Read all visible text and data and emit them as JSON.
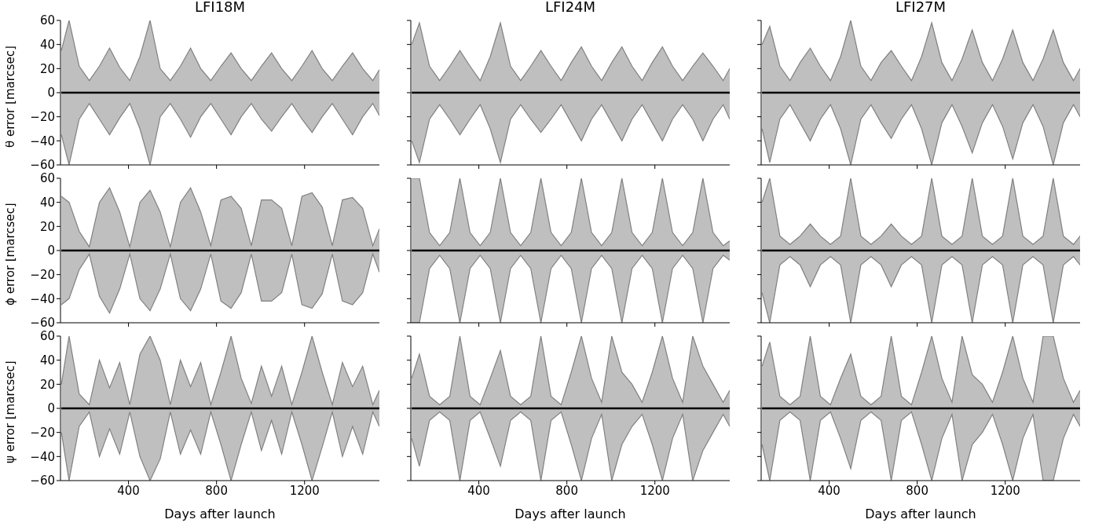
{
  "chart_data": [
    {
      "type": "line",
      "title": "LFI18M",
      "ylabel": "θ error [marcsec]",
      "tick_labels": "y",
      "xlim": [
        91,
        1540
      ],
      "xticks": [
        400,
        800,
        1200
      ],
      "ylim": [
        -60,
        60
      ],
      "yticks": [
        -60,
        -40,
        -20,
        0,
        20,
        40,
        60
      ],
      "x": [
        95,
        130,
        176,
        222,
        268,
        314,
        360,
        406,
        452,
        498,
        544,
        590,
        636,
        682,
        728,
        774,
        820,
        866,
        912,
        958,
        1004,
        1050,
        1096,
        1142,
        1188,
        1234,
        1280,
        1326,
        1372,
        1418,
        1464,
        1510,
        1540
      ],
      "series": [
        {
          "type": "area",
          "color": "#808080",
          "values": [
            35,
            60,
            22,
            10,
            22,
            37,
            21,
            10,
            30,
            60,
            20,
            10,
            22,
            37,
            20,
            10,
            22,
            33,
            20,
            10,
            22,
            33,
            20,
            10,
            22,
            35,
            20,
            10,
            22,
            33,
            20,
            10,
            19
          ]
        },
        {
          "type": "area",
          "color": "#808080",
          "values": [
            -35,
            -60,
            -22,
            -9,
            -22,
            -35,
            -21,
            -9,
            -30,
            -60,
            -20,
            -9,
            -22,
            -37,
            -20,
            -9,
            -22,
            -35,
            -20,
            -9,
            -22,
            -32,
            -20,
            -9,
            -22,
            -33,
            -20,
            -9,
            -22,
            -35,
            -20,
            -9,
            -19
          ]
        },
        {
          "color": "#000000",
          "values": [
            0,
            0,
            0,
            0,
            0,
            0,
            0,
            0,
            0,
            0,
            0,
            0,
            0,
            0,
            0,
            0,
            0,
            0,
            0,
            0,
            0,
            0,
            0,
            0,
            0,
            0,
            0,
            0,
            0,
            0,
            0,
            0,
            0
          ]
        }
      ]
    },
    {
      "type": "line",
      "title": "LFI24M",
      "tick_labels": false,
      "xlim": [
        91,
        1540
      ],
      "xticks": [
        400,
        800,
        1200
      ],
      "ylim": [
        -60,
        60
      ],
      "yticks": [
        -60,
        -40,
        -20,
        0,
        20,
        40,
        60
      ],
      "x": [
        95,
        130,
        176,
        222,
        268,
        314,
        360,
        406,
        452,
        498,
        544,
        590,
        636,
        682,
        728,
        774,
        820,
        866,
        912,
        958,
        1004,
        1050,
        1096,
        1142,
        1188,
        1234,
        1280,
        1326,
        1372,
        1418,
        1464,
        1510,
        1540
      ],
      "series": [
        {
          "type": "area",
          "color": "#808080",
          "values": [
            40,
            58,
            22,
            10,
            22,
            35,
            22,
            10,
            30,
            58,
            22,
            10,
            22,
            35,
            22,
            10,
            25,
            38,
            22,
            10,
            25,
            38,
            22,
            10,
            25,
            38,
            22,
            10,
            22,
            33,
            22,
            10,
            20
          ]
        },
        {
          "type": "area",
          "color": "#808080",
          "values": [
            -40,
            -58,
            -22,
            -10,
            -22,
            -35,
            -22,
            -10,
            -30,
            -58,
            -22,
            -10,
            -22,
            -33,
            -22,
            -10,
            -25,
            -40,
            -22,
            -10,
            -25,
            -40,
            -22,
            -10,
            -25,
            -40,
            -22,
            -10,
            -22,
            -40,
            -22,
            -10,
            -22
          ]
        },
        {
          "color": "#000000",
          "values": [
            0,
            0,
            0,
            0,
            0,
            0,
            0,
            0,
            0,
            0,
            0,
            0,
            0,
            0,
            0,
            0,
            0,
            0,
            0,
            0,
            0,
            0,
            0,
            0,
            0,
            0,
            0,
            0,
            0,
            0,
            0,
            0,
            0
          ]
        }
      ]
    },
    {
      "type": "line",
      "title": "LFI27M",
      "tick_labels": false,
      "xlim": [
        91,
        1540
      ],
      "xticks": [
        400,
        800,
        1200
      ],
      "ylim": [
        -60,
        60
      ],
      "yticks": [
        -60,
        -40,
        -20,
        0,
        20,
        40,
        60
      ],
      "x": [
        95,
        130,
        176,
        222,
        268,
        314,
        360,
        406,
        452,
        498,
        544,
        590,
        636,
        682,
        728,
        774,
        820,
        866,
        912,
        958,
        1004,
        1050,
        1096,
        1142,
        1188,
        1234,
        1280,
        1326,
        1372,
        1418,
        1464,
        1510,
        1540
      ],
      "series": [
        {
          "type": "area",
          "color": "#808080",
          "values": [
            40,
            55,
            22,
            10,
            25,
            37,
            22,
            10,
            30,
            60,
            22,
            10,
            25,
            35,
            22,
            10,
            30,
            58,
            25,
            10,
            28,
            52,
            25,
            10,
            28,
            52,
            25,
            10,
            28,
            52,
            25,
            10,
            20
          ]
        },
        {
          "type": "area",
          "color": "#808080",
          "values": [
            -30,
            -58,
            -22,
            -10,
            -25,
            -40,
            -22,
            -10,
            -30,
            -60,
            -22,
            -10,
            -25,
            -38,
            -22,
            -10,
            -30,
            -60,
            -25,
            -10,
            -28,
            -50,
            -25,
            -10,
            -28,
            -55,
            -25,
            -10,
            -28,
            -60,
            -25,
            -10,
            -20
          ]
        },
        {
          "color": "#000000",
          "values": [
            0,
            0,
            0,
            0,
            0,
            0,
            0,
            0,
            0,
            0,
            0,
            0,
            0,
            0,
            0,
            0,
            0,
            0,
            0,
            0,
            0,
            0,
            0,
            0,
            0,
            0,
            0,
            0,
            0,
            0,
            0,
            0,
            0
          ]
        }
      ]
    },
    {
      "type": "line",
      "ylabel": "ϕ error [marcsec]",
      "tick_labels": "y",
      "xlim": [
        91,
        1540
      ],
      "xticks": [
        400,
        800,
        1200
      ],
      "ylim": [
        -60,
        60
      ],
      "yticks": [
        -60,
        -40,
        -20,
        0,
        20,
        40,
        60
      ],
      "x": [
        95,
        130,
        176,
        222,
        268,
        314,
        360,
        406,
        452,
        498,
        544,
        590,
        636,
        682,
        728,
        774,
        820,
        866,
        912,
        958,
        1004,
        1050,
        1096,
        1142,
        1188,
        1234,
        1280,
        1326,
        1372,
        1418,
        1464,
        1510,
        1540
      ],
      "series": [
        {
          "type": "area",
          "color": "#808080",
          "values": [
            45,
            40,
            16,
            3,
            40,
            52,
            32,
            3,
            40,
            50,
            32,
            3,
            40,
            52,
            32,
            4,
            42,
            45,
            35,
            4,
            42,
            42,
            35,
            4,
            45,
            48,
            36,
            4,
            42,
            44,
            35,
            4,
            18
          ]
        },
        {
          "type": "area",
          "color": "#808080",
          "values": [
            -45,
            -40,
            -16,
            -3,
            -38,
            -52,
            -32,
            -3,
            -40,
            -50,
            -32,
            -3,
            -40,
            -50,
            -32,
            -3,
            -42,
            -48,
            -35,
            -3,
            -42,
            -42,
            -35,
            -3,
            -45,
            -48,
            -36,
            -3,
            -42,
            -45,
            -35,
            -3,
            -18
          ]
        },
        {
          "color": "#000000",
          "values": [
            0,
            0,
            0,
            0,
            0,
            0,
            0,
            0,
            0,
            0,
            0,
            0,
            0,
            0,
            0,
            0,
            0,
            0,
            0,
            0,
            0,
            0,
            0,
            0,
            0,
            0,
            0,
            0,
            0,
            0,
            0,
            0,
            0
          ]
        }
      ]
    },
    {
      "type": "line",
      "tick_labels": false,
      "xlim": [
        91,
        1540
      ],
      "xticks": [
        400,
        800,
        1200
      ],
      "ylim": [
        -60,
        60
      ],
      "yticks": [
        -60,
        -40,
        -20,
        0,
        20,
        40,
        60
      ],
      "x": [
        95,
        130,
        176,
        222,
        268,
        314,
        360,
        406,
        452,
        498,
        544,
        590,
        636,
        682,
        728,
        774,
        820,
        866,
        912,
        958,
        1004,
        1050,
        1096,
        1142,
        1188,
        1234,
        1280,
        1326,
        1372,
        1418,
        1464,
        1510,
        1540
      ],
      "series": [
        {
          "type": "area",
          "color": "#808080",
          "values": [
            60,
            60,
            15,
            4,
            15,
            60,
            15,
            4,
            15,
            60,
            15,
            4,
            15,
            60,
            15,
            4,
            15,
            60,
            15,
            4,
            15,
            60,
            15,
            4,
            15,
            60,
            15,
            4,
            15,
            60,
            15,
            4,
            8
          ]
        },
        {
          "type": "area",
          "color": "#808080",
          "values": [
            -60,
            -60,
            -15,
            -4,
            -15,
            -60,
            -15,
            -4,
            -15,
            -60,
            -15,
            -4,
            -15,
            -60,
            -15,
            -4,
            -15,
            -60,
            -15,
            -4,
            -15,
            -60,
            -15,
            -4,
            -15,
            -60,
            -15,
            -4,
            -15,
            -60,
            -15,
            -4,
            -8
          ]
        },
        {
          "color": "#000000",
          "values": [
            0,
            0,
            0,
            0,
            0,
            0,
            0,
            0,
            0,
            0,
            0,
            0,
            0,
            0,
            0,
            0,
            0,
            0,
            0,
            0,
            0,
            0,
            0,
            0,
            0,
            0,
            0,
            0,
            0,
            0,
            0,
            0,
            0
          ]
        }
      ]
    },
    {
      "type": "line",
      "tick_labels": false,
      "xlim": [
        91,
        1540
      ],
      "xticks": [
        400,
        800,
        1200
      ],
      "ylim": [
        -60,
        60
      ],
      "yticks": [
        -60,
        -40,
        -20,
        0,
        20,
        40,
        60
      ],
      "x": [
        95,
        130,
        176,
        222,
        268,
        314,
        360,
        406,
        452,
        498,
        544,
        590,
        636,
        682,
        728,
        774,
        820,
        866,
        912,
        958,
        1004,
        1050,
        1096,
        1142,
        1188,
        1234,
        1280,
        1326,
        1372,
        1418,
        1464,
        1510,
        1540
      ],
      "series": [
        {
          "type": "area",
          "color": "#808080",
          "values": [
            40,
            60,
            12,
            5,
            12,
            22,
            12,
            5,
            12,
            60,
            12,
            5,
            12,
            22,
            12,
            5,
            12,
            60,
            12,
            5,
            12,
            60,
            12,
            5,
            12,
            60,
            12,
            5,
            12,
            60,
            12,
            5,
            12
          ]
        },
        {
          "type": "area",
          "color": "#808080",
          "values": [
            -35,
            -60,
            -12,
            -5,
            -12,
            -30,
            -12,
            -5,
            -12,
            -60,
            -12,
            -5,
            -12,
            -30,
            -12,
            -5,
            -12,
            -60,
            -12,
            -5,
            -12,
            -60,
            -12,
            -5,
            -12,
            -60,
            -12,
            -5,
            -12,
            -60,
            -12,
            -5,
            -12
          ]
        },
        {
          "color": "#000000",
          "values": [
            0,
            0,
            0,
            0,
            0,
            0,
            0,
            0,
            0,
            0,
            0,
            0,
            0,
            0,
            0,
            0,
            0,
            0,
            0,
            0,
            0,
            0,
            0,
            0,
            0,
            0,
            0,
            0,
            0,
            0,
            0,
            0,
            0
          ]
        }
      ]
    },
    {
      "type": "line",
      "xlabel": "Days after launch",
      "ylabel": "ψ error [marcsec]",
      "xlim": [
        91,
        1540
      ],
      "xticks": [
        400,
        800,
        1200
      ],
      "ylim": [
        -60,
        60
      ],
      "yticks": [
        -60,
        -40,
        -20,
        0,
        20,
        40,
        60
      ],
      "x": [
        95,
        130,
        176,
        222,
        268,
        314,
        360,
        406,
        452,
        498,
        544,
        590,
        636,
        682,
        728,
        774,
        820,
        866,
        912,
        958,
        1004,
        1050,
        1096,
        1142,
        1188,
        1234,
        1280,
        1326,
        1372,
        1418,
        1464,
        1510,
        1540
      ],
      "series": [
        {
          "type": "area",
          "color": "#808080",
          "values": [
            20,
            60,
            12,
            3,
            40,
            17,
            38,
            3,
            45,
            60,
            40,
            3,
            40,
            18,
            38,
            3,
            30,
            60,
            25,
            4,
            35,
            10,
            35,
            3,
            30,
            60,
            30,
            3,
            38,
            18,
            35,
            3,
            15
          ]
        },
        {
          "type": "area",
          "color": "#808080",
          "values": [
            -20,
            -60,
            -15,
            -3,
            -40,
            -17,
            -38,
            -3,
            -40,
            -60,
            -42,
            -3,
            -38,
            -18,
            -38,
            -3,
            -30,
            -60,
            -30,
            -3,
            -35,
            -10,
            -38,
            -3,
            -30,
            -60,
            -32,
            -3,
            -40,
            -15,
            -38,
            -3,
            -15
          ]
        },
        {
          "color": "#000000",
          "values": [
            0,
            0,
            0,
            0,
            0,
            0,
            0,
            0,
            0,
            0,
            0,
            0,
            0,
            0,
            0,
            0,
            0,
            0,
            0,
            0,
            0,
            0,
            0,
            0,
            0,
            0,
            0,
            0,
            0,
            0,
            0,
            0,
            0
          ]
        }
      ]
    },
    {
      "type": "line",
      "xlabel": "Days after launch",
      "tick_labels": "x",
      "xlim": [
        91,
        1540
      ],
      "xticks": [
        400,
        800,
        1200
      ],
      "ylim": [
        -60,
        60
      ],
      "yticks": [
        -60,
        -40,
        -20,
        0,
        20,
        40,
        60
      ],
      "x": [
        95,
        130,
        176,
        222,
        268,
        314,
        360,
        406,
        452,
        498,
        544,
        590,
        636,
        682,
        728,
        774,
        820,
        866,
        912,
        958,
        1004,
        1050,
        1096,
        1142,
        1188,
        1234,
        1280,
        1326,
        1372,
        1418,
        1464,
        1510,
        1540
      ],
      "series": [
        {
          "type": "area",
          "color": "#808080",
          "values": [
            25,
            45,
            10,
            3,
            10,
            60,
            10,
            3,
            25,
            48,
            10,
            3,
            10,
            60,
            10,
            3,
            30,
            60,
            25,
            5,
            60,
            30,
            20,
            5,
            30,
            60,
            25,
            5,
            60,
            35,
            20,
            5,
            15
          ]
        },
        {
          "type": "area",
          "color": "#808080",
          "values": [
            -25,
            -48,
            -10,
            -3,
            -10,
            -60,
            -10,
            -3,
            -25,
            -48,
            -10,
            -3,
            -10,
            -60,
            -10,
            -3,
            -30,
            -60,
            -25,
            -5,
            -60,
            -30,
            -15,
            -5,
            -30,
            -60,
            -25,
            -5,
            -60,
            -35,
            -20,
            -5,
            -15
          ]
        },
        {
          "color": "#000000",
          "values": [
            0,
            0,
            0,
            0,
            0,
            0,
            0,
            0,
            0,
            0,
            0,
            0,
            0,
            0,
            0,
            0,
            0,
            0,
            0,
            0,
            0,
            0,
            0,
            0,
            0,
            0,
            0,
            0,
            0,
            0,
            0,
            0,
            0
          ]
        }
      ]
    },
    {
      "type": "line",
      "xlabel": "Days after launch",
      "tick_labels": "x",
      "xlim": [
        91,
        1540
      ],
      "xticks": [
        400,
        800,
        1200
      ],
      "ylim": [
        -60,
        60
      ],
      "yticks": [
        -60,
        -40,
        -20,
        0,
        20,
        40,
        60
      ],
      "x": [
        95,
        130,
        176,
        222,
        268,
        314,
        360,
        406,
        452,
        498,
        544,
        590,
        636,
        682,
        728,
        774,
        820,
        866,
        912,
        958,
        1004,
        1050,
        1096,
        1142,
        1188,
        1234,
        1280,
        1326,
        1372,
        1418,
        1464,
        1510,
        1540
      ],
      "series": [
        {
          "type": "area",
          "color": "#808080",
          "values": [
            35,
            55,
            10,
            3,
            10,
            60,
            10,
            3,
            25,
            45,
            10,
            3,
            10,
            60,
            10,
            3,
            30,
            60,
            25,
            5,
            60,
            28,
            20,
            5,
            30,
            60,
            25,
            5,
            60,
            60,
            25,
            5,
            15
          ]
        },
        {
          "type": "area",
          "color": "#808080",
          "values": [
            -30,
            -60,
            -10,
            -3,
            -10,
            -60,
            -10,
            -3,
            -25,
            -50,
            -10,
            -3,
            -10,
            -60,
            -10,
            -3,
            -30,
            -60,
            -25,
            -5,
            -60,
            -30,
            -20,
            -5,
            -30,
            -60,
            -25,
            -5,
            -60,
            -60,
            -25,
            -5,
            -15
          ]
        },
        {
          "color": "#000000",
          "values": [
            0,
            0,
            0,
            0,
            0,
            0,
            0,
            0,
            0,
            0,
            0,
            0,
            0,
            0,
            0,
            0,
            0,
            0,
            0,
            0,
            0,
            0,
            0,
            0,
            0,
            0,
            0,
            0,
            0,
            0,
            0,
            0,
            0
          ]
        }
      ]
    }
  ]
}
